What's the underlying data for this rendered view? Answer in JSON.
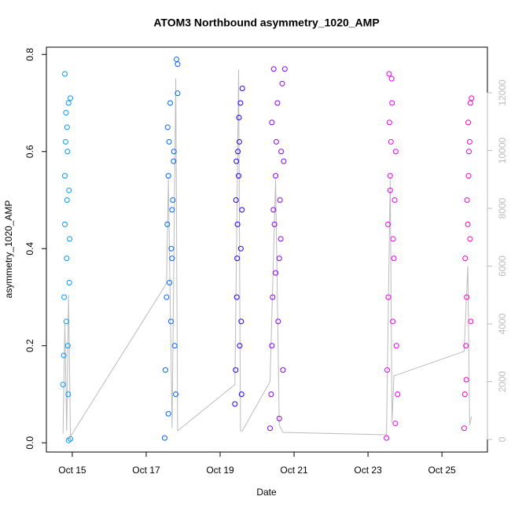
{
  "chart_data": {
    "type": "scatter",
    "title": "ATOM3 Northbound asymmetry_1020_AMP",
    "x_label": "Date",
    "y_label": "asymmetry_1020_AMP",
    "xlim": [
      14.3,
      26.23
    ],
    "xticks": [
      {
        "value": 15,
        "label": "Oct 15"
      },
      {
        "value": 17,
        "label": "Oct 17"
      },
      {
        "value": 19,
        "label": "Oct 19"
      },
      {
        "value": 21,
        "label": "Oct 21"
      },
      {
        "value": 23,
        "label": "Oct 23"
      },
      {
        "value": 25,
        "label": "Oct 25"
      }
    ],
    "ylim": [
      -0.019,
      0.815
    ],
    "yticks": [
      {
        "value": 0,
        "label": "0.0"
      },
      0.2,
      0.4,
      0.6,
      0.8
    ],
    "y2lim": [
      -435,
      13578
    ],
    "y2ticks": [
      0,
      2000,
      4000,
      6000,
      8000,
      10000,
      12000
    ],
    "series": [
      {
        "color": "#0099ff",
        "x": [
          14.75,
          14.77,
          14.78,
          14.8,
          14.8,
          14.82,
          14.83,
          14.84,
          14.85,
          14.86,
          14.87,
          14.88,
          14.89,
          14.9,
          14.9,
          14.92,
          14.93,
          14.95,
          14.95,
          14.8,
          14.86,
          14.91
        ],
        "values": [
          0.12,
          0.18,
          0.3,
          0.45,
          0.55,
          0.62,
          0.68,
          0.25,
          0.38,
          0.5,
          0.6,
          0.2,
          0.1,
          0.7,
          0.005,
          0.33,
          0.42,
          0.71,
          0.008,
          0.76,
          0.65,
          0.52
        ]
      },
      {
        "color": "#0066ff",
        "x": [
          17.5,
          17.52,
          17.55,
          17.57,
          17.6,
          17.62,
          17.65,
          17.67,
          17.7,
          17.72,
          17.75,
          17.77,
          17.8,
          17.82,
          17.85,
          17.85,
          17.6,
          17.7,
          17.58,
          17.68,
          17.74,
          17.63
        ],
        "values": [
          0.01,
          0.15,
          0.3,
          0.45,
          0.55,
          0.62,
          0.7,
          0.25,
          0.38,
          0.5,
          0.6,
          0.2,
          0.1,
          0.79,
          0.78,
          0.72,
          0.06,
          0.48,
          0.65,
          0.4,
          0.58,
          0.33
        ]
      },
      {
        "color": "#2200ff",
        "x": [
          19.4,
          19.42,
          19.45,
          19.47,
          19.5,
          19.52,
          19.55,
          19.57,
          19.6,
          19.43,
          19.48,
          19.53,
          19.58,
          19.46,
          19.51,
          19.56,
          19.44,
          19.59
        ],
        "values": [
          0.08,
          0.15,
          0.3,
          0.45,
          0.55,
          0.62,
          0.7,
          0.25,
          0.73,
          0.5,
          0.6,
          0.2,
          0.1,
          0.38,
          0.67,
          0.4,
          0.58,
          0.48
        ]
      },
      {
        "color": "#8800ff",
        "x": [
          20.35,
          20.38,
          20.4,
          20.42,
          20.45,
          20.47,
          20.5,
          20.52,
          20.55,
          20.57,
          20.6,
          20.62,
          20.65,
          20.68,
          20.7,
          20.75,
          20.4,
          20.5,
          20.6,
          20.72,
          20.44,
          20.64
        ],
        "values": [
          0.03,
          0.1,
          0.2,
          0.3,
          0.77,
          0.45,
          0.55,
          0.62,
          0.7,
          0.25,
          0.38,
          0.5,
          0.6,
          0.74,
          0.15,
          0.77,
          0.66,
          0.35,
          0.05,
          0.58,
          0.48,
          0.42
        ]
      },
      {
        "color": "#ee00ff",
        "x": [
          23.5,
          23.52,
          23.55,
          23.57,
          23.6,
          23.62,
          23.65,
          23.67,
          23.7,
          23.72,
          23.75,
          23.77,
          23.8,
          23.54,
          23.64,
          23.74,
          23.58,
          23.68,
          23.6
        ],
        "values": [
          0.01,
          0.15,
          0.3,
          0.76,
          0.55,
          0.62,
          0.7,
          0.25,
          0.38,
          0.5,
          0.6,
          0.2,
          0.1,
          0.45,
          0.75,
          0.04,
          0.66,
          0.42,
          0.52
        ]
      },
      {
        "color": "#ff00cc",
        "x": [
          25.6,
          25.62,
          25.65,
          25.67,
          25.7,
          25.72,
          25.75,
          25.77,
          25.8,
          25.63,
          25.68,
          25.73,
          25.78,
          25.66,
          25.71,
          25.76
        ],
        "values": [
          0.03,
          0.1,
          0.2,
          0.3,
          0.45,
          0.55,
          0.62,
          0.7,
          0.71,
          0.38,
          0.5,
          0.6,
          0.25,
          0.13,
          0.66,
          0.42
        ]
      },
      {
        "type": "line",
        "axis": "y2",
        "color": "#bbbbbb",
        "x": [
          14.75,
          14.8,
          14.85,
          14.9,
          14.95,
          17.55,
          17.6,
          17.7,
          17.8,
          17.85,
          19.4,
          19.5,
          19.55,
          19.6,
          20.35,
          20.5,
          20.6,
          20.7,
          23.5,
          23.6,
          23.65,
          23.7,
          25.6,
          25.7,
          25.75,
          25.8
        ],
        "values": [
          200,
          4000,
          300,
          5000,
          100,
          5400,
          9000,
          400,
          12500,
          300,
          1900,
          12800,
          300,
          300,
          2000,
          9000,
          500,
          245,
          163,
          9000,
          600,
          2200,
          3050,
          6000,
          500,
          800
        ]
      }
    ]
  }
}
